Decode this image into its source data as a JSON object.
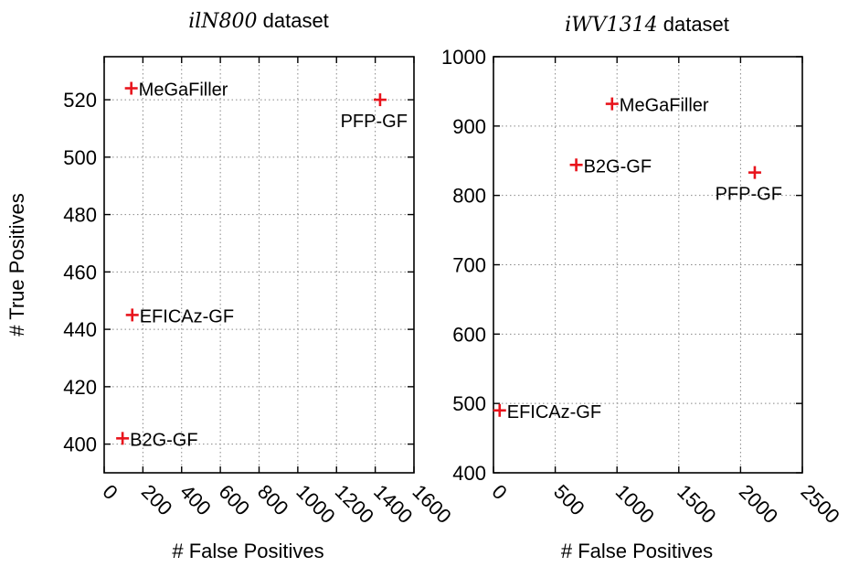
{
  "chart_data": [
    {
      "type": "scatter",
      "title_italic": "ilN800",
      "title_suffix": "dataset",
      "xlabel": "# False Positives",
      "ylabel": "# True Positives",
      "xlim": [
        0,
        1600
      ],
      "ylim": [
        390,
        535
      ],
      "xticks": [
        0,
        200,
        400,
        600,
        800,
        1000,
        1200,
        1400,
        1600
      ],
      "yticks": [
        400,
        420,
        440,
        460,
        480,
        500,
        520
      ],
      "grid": true,
      "points": [
        {
          "label": "MeGaFiller",
          "x": 140,
          "y": 524,
          "label_pos": "right"
        },
        {
          "label": "PFP-GF",
          "x": 1425,
          "y": 520,
          "label_pos": "below-left"
        },
        {
          "label": "EFICAz-GF",
          "x": 145,
          "y": 445,
          "label_pos": "right"
        },
        {
          "label": "B2G-GF",
          "x": 95,
          "y": 402,
          "label_pos": "right"
        }
      ]
    },
    {
      "type": "scatter",
      "title_italic": "iWV1314",
      "title_suffix": "dataset",
      "xlabel": "# False Positives",
      "ylabel": "",
      "xlim": [
        0,
        2500
      ],
      "ylim": [
        400,
        1000
      ],
      "xticks": [
        0,
        500,
        1000,
        1500,
        2000,
        2500
      ],
      "yticks": [
        400,
        500,
        600,
        700,
        800,
        900,
        1000
      ],
      "grid": true,
      "points": [
        {
          "label": "MeGaFiller",
          "x": 960,
          "y": 932,
          "label_pos": "right"
        },
        {
          "label": "B2G-GF",
          "x": 670,
          "y": 844,
          "label_pos": "right"
        },
        {
          "label": "PFP-GF",
          "x": 2115,
          "y": 833,
          "label_pos": "below-left"
        },
        {
          "label": "EFICAz-GF",
          "x": 50,
          "y": 490,
          "label_pos": "right"
        }
      ]
    }
  ],
  "colors": {
    "marker": "#e8141c",
    "axes": "#000000",
    "grid": "#888888"
  }
}
